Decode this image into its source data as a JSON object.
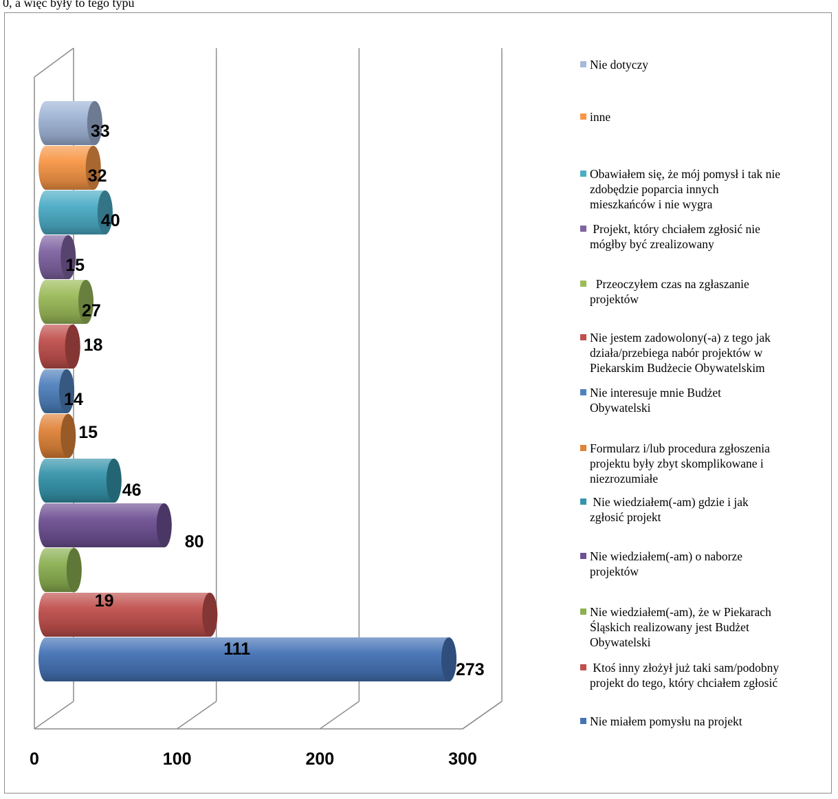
{
  "header_text": "0, a więc były to tego typu",
  "chart_data": {
    "type": "bar",
    "orientation": "horizontal",
    "style": "3d-cylinder",
    "categories": [
      "Nie miałem pomysłu na projekt",
      "Ktoś inny złożył już taki sam/podobny projekt do tego, który chciałem zgłosić",
      "Nie wiedziałem(-am), że w Piekarach Śląskich realizowany jest Budżet Obywatelski",
      "Nie wiedziałem(-am) o naborze projektów",
      " Nie wiedziałem(-am) gdzie i jak zgłosić projekt",
      "Formularz i/lub procedura zgłoszenia projektu były zbyt skomplikowane i niezrozumiałe",
      "Nie interesuje mnie Budżet Obywatelski",
      "Nie jestem zadowolony(-a) z tego jak działa/przebiega nabór projektów w Piekarskim Budżecie Obywatelskim",
      "  Przeoczyłem czas na zgłaszanie projektów",
      " Projekt, który chciałem zgłosić nie mógłby być zrealizowany",
      "Obawiałem się, że mój pomysł i tak nie zdobędzie poparcia innych mieszkańców i nie wygra",
      "inne",
      "Nie dotyczy"
    ],
    "values": [
      273,
      111,
      19,
      80,
      46,
      15,
      14,
      18,
      27,
      15,
      40,
      32,
      33
    ],
    "value_labels": [
      "273",
      "111",
      "19",
      "80",
      "46",
      "15",
      "14",
      "18",
      "27",
      "15",
      "40",
      "32",
      "33"
    ],
    "colors": [
      "#4573b5",
      "#c0504d",
      "#8cb052",
      "#6f5194",
      "#3594ab",
      "#e0843a",
      "#4f81bd",
      "#c0504d",
      "#9bbb59",
      "#8064a2",
      "#4bacc6",
      "#f79646",
      "#9fb4d6"
    ],
    "xlim": [
      0,
      300
    ],
    "x_ticks": [
      "0",
      "100",
      "200",
      "300"
    ],
    "gridlines": true,
    "legend_position": "right"
  },
  "legend": {
    "items": [
      {
        "label": "Nie dotyczy",
        "color": "#a6b9da"
      },
      {
        "label": "inne",
        "color": "#f79646"
      },
      {
        "label": "Obawiałem się, że mój pomysł i tak nie\nzdobędzie poparcia innych\nmieszkańców i nie wygra",
        "color": "#4bacc6"
      },
      {
        "label": " Projekt, który chciałem zgłosić nie\nmógłby być zrealizowany",
        "color": "#8064a2"
      },
      {
        "label": "  Przeoczyłem czas na zgłaszanie\nprojektów",
        "color": "#9bbb59"
      },
      {
        "label": "Nie jestem zadowolony(-a) z tego jak\ndziała/przebiega nabór projektów w\nPiekarskim Budżecie Obywatelskim",
        "color": "#c0504d"
      },
      {
        "label": "Nie interesuje mnie Budżet\nObywatelski",
        "color": "#4f81bd"
      },
      {
        "label": "Formularz i/lub procedura zgłoszenia\nprojektu były zbyt skomplikowane i\nniezrozumiałe",
        "color": "#e0843a"
      },
      {
        "label": " Nie wiedziałem(-am) gdzie i jak\nzgłosić projekt",
        "color": "#3594ab"
      },
      {
        "label": "Nie wiedziałem(-am) o naborze\nprojektów",
        "color": "#6f5194"
      },
      {
        "label": "Nie wiedziałem(-am), że w Piekarach\nŚląskich realizowany jest Budżet\nObywatelski",
        "color": "#8cb052"
      },
      {
        "label": " Ktoś inny złożył już taki sam/podobny\nprojekt do tego, który chciałem zgłosić",
        "color": "#c0504d"
      },
      {
        "label": "Nie miałem pomysłu na projekt",
        "color": "#4573b5"
      }
    ]
  }
}
